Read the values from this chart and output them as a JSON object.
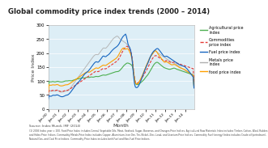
{
  "title": "Global commodity price index trends (2000 – 2014)",
  "xlabel": "Month",
  "ylabel": "Price Index",
  "ylim": [
    0,
    300
  ],
  "yticks": [
    0,
    50,
    100,
    150,
    200,
    250,
    300
  ],
  "colors": {
    "agricultural": "#4caf50",
    "commodities": "#e53935",
    "fuel": "#1565c0",
    "metals": "#b0b0b0",
    "food": "#ffa000"
  },
  "legend_labels": [
    "Agricultural price\nindex",
    "Commodities\nprice index",
    "Fuel price index",
    "Metals price\nindex",
    "food price index"
  ],
  "background": "#ffffff",
  "plot_bg": "#ddeef6",
  "source_text": "Source: Index Mundi, IMF (2014)",
  "note_text": "(1) 2005 Index year = 100. Food Price Index includes Cereal, Vegetable Oils, Meat, Seafood, Sugar, Bananas, and Oranges Price Indices. Agricultural Raw Materials Index includes Timber, Cotton, Wool, Rubber, and Hides Price Indices. Commodity Metals Price Index includes Copper, Aluminium, Iron Ore, Tin, Nickel, Zinc, Lead, and Uranium Price Indices. Commodity Fuel (energy) Index includes Crude oil (petroleum), Natural Gas, and Coal Price Indices. Commodity Price Index includes both Fuel and Non-Fuel Price Indices."
}
